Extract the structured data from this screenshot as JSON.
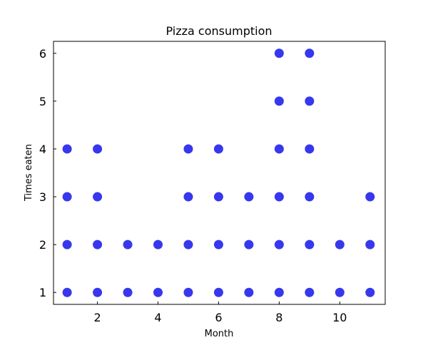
{
  "chart_data": {
    "type": "scatter",
    "title": "Pizza consumption",
    "xlabel": "Month",
    "ylabel": "Times eaten",
    "xlim": [
      0.55,
      11.5
    ],
    "ylim": [
      0.75,
      6.25
    ],
    "xticks": [
      2,
      4,
      6,
      8,
      10
    ],
    "yticks": [
      1,
      2,
      3,
      4,
      5,
      6
    ],
    "grid": false,
    "marker_color": "#3333ee",
    "points": [
      {
        "x": 1,
        "y": 1
      },
      {
        "x": 1,
        "y": 2
      },
      {
        "x": 1,
        "y": 3
      },
      {
        "x": 1,
        "y": 4
      },
      {
        "x": 2,
        "y": 1
      },
      {
        "x": 2,
        "y": 2
      },
      {
        "x": 2,
        "y": 3
      },
      {
        "x": 2,
        "y": 4
      },
      {
        "x": 3,
        "y": 1
      },
      {
        "x": 3,
        "y": 2
      },
      {
        "x": 4,
        "y": 1
      },
      {
        "x": 4,
        "y": 2
      },
      {
        "x": 5,
        "y": 1
      },
      {
        "x": 5,
        "y": 2
      },
      {
        "x": 5,
        "y": 3
      },
      {
        "x": 5,
        "y": 4
      },
      {
        "x": 6,
        "y": 1
      },
      {
        "x": 6,
        "y": 2
      },
      {
        "x": 6,
        "y": 3
      },
      {
        "x": 6,
        "y": 4
      },
      {
        "x": 7,
        "y": 1
      },
      {
        "x": 7,
        "y": 2
      },
      {
        "x": 7,
        "y": 3
      },
      {
        "x": 8,
        "y": 1
      },
      {
        "x": 8,
        "y": 2
      },
      {
        "x": 8,
        "y": 3
      },
      {
        "x": 8,
        "y": 4
      },
      {
        "x": 8,
        "y": 5
      },
      {
        "x": 8,
        "y": 6
      },
      {
        "x": 9,
        "y": 1
      },
      {
        "x": 9,
        "y": 2
      },
      {
        "x": 9,
        "y": 3
      },
      {
        "x": 9,
        "y": 4
      },
      {
        "x": 9,
        "y": 5
      },
      {
        "x": 9,
        "y": 6
      },
      {
        "x": 10,
        "y": 1
      },
      {
        "x": 10,
        "y": 2
      },
      {
        "x": 11,
        "y": 1
      },
      {
        "x": 11,
        "y": 2
      },
      {
        "x": 11,
        "y": 3
      }
    ]
  }
}
